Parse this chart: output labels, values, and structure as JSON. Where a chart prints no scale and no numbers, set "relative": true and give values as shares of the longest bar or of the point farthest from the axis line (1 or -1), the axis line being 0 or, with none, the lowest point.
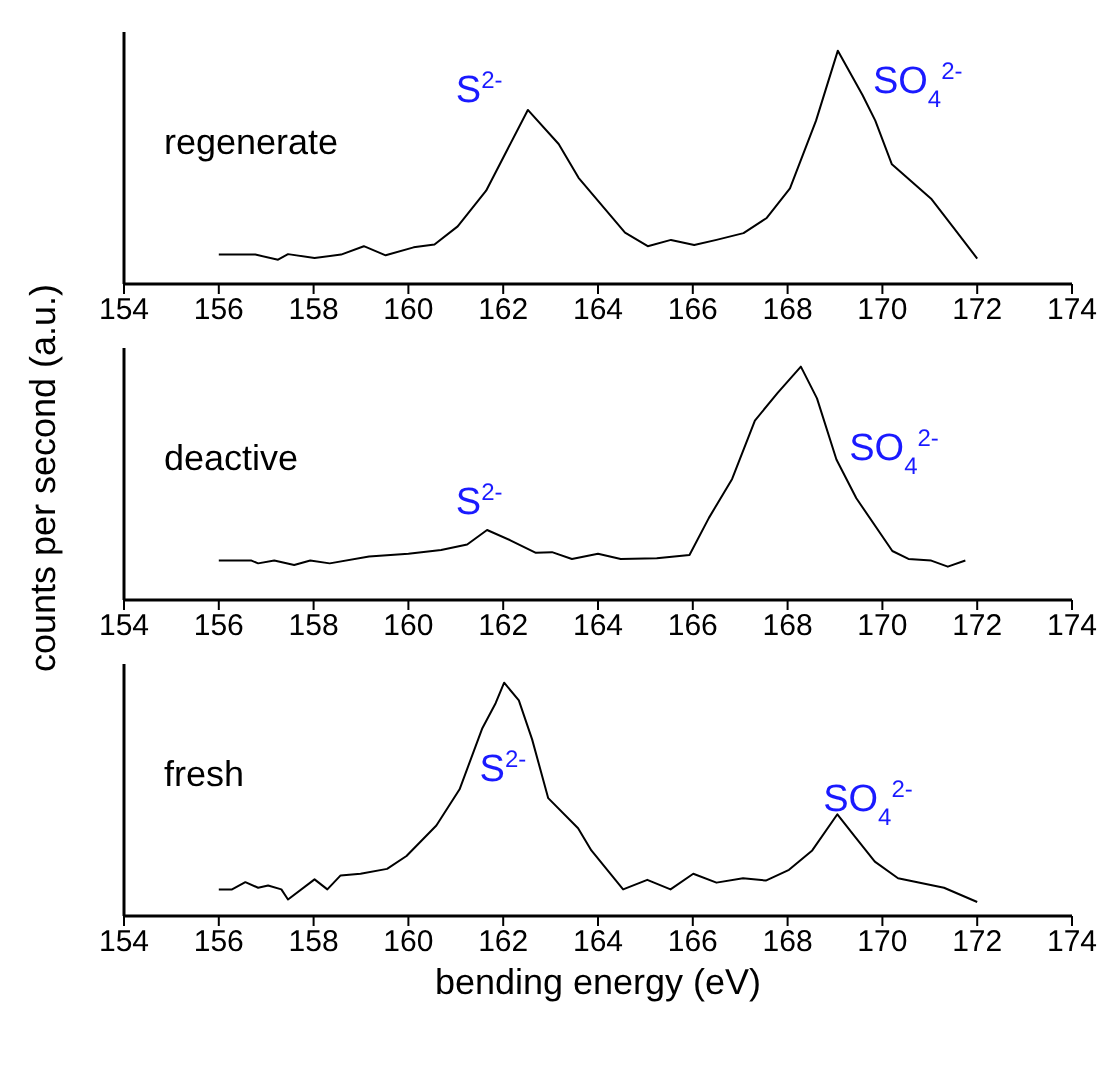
{
  "chart_data": [
    {
      "type": "line",
      "relative": true,
      "xlim": [
        154,
        174
      ],
      "xticks": [
        154,
        156,
        158,
        160,
        162,
        164,
        166,
        168,
        170,
        172,
        174
      ],
      "series": [
        {
          "name": "regenerate",
          "color": "#000000",
          "x": [
            156.0,
            156.77,
            157.25,
            157.46,
            158.02,
            158.58,
            159.06,
            159.52,
            160.11,
            160.55,
            161.04,
            161.64,
            162.52,
            163.17,
            163.59,
            164.57,
            165.05,
            165.54,
            166.03,
            166.5,
            167.07,
            167.56,
            168.05,
            168.6,
            169.06,
            169.58,
            169.85,
            170.2,
            171.04,
            171.5,
            172.0
          ],
          "values": [
            0.126,
            0.126,
            0.104,
            0.128,
            0.111,
            0.126,
            0.162,
            0.123,
            0.157,
            0.169,
            0.247,
            0.4,
            0.746,
            0.6,
            0.455,
            0.22,
            0.162,
            0.189,
            0.167,
            0.189,
            0.218,
            0.283,
            0.41,
            0.7,
            1,
            0.81,
            0.7,
            0.513,
            0.363,
            0.242,
            0.109
          ]
        }
      ],
      "annotations": [
        "S$^{2-}$",
        "SO$_{4}$$^{2-}$"
      ]
    },
    {
      "type": "line",
      "relative": true,
      "xlim": [
        154,
        174
      ],
      "xticks": [
        154,
        156,
        158,
        160,
        162,
        164,
        166,
        168,
        170,
        172,
        174
      ],
      "ylabel": "counts per second (a.u.)",
      "series": [
        {
          "name": "deactive",
          "color": "#000000",
          "x": [
            156,
            156.69,
            156.83,
            157.17,
            157.59,
            157.93,
            158.34,
            159.17,
            160,
            160.69,
            161.24,
            161.66,
            162.14,
            162.69,
            163.03,
            163.45,
            164,
            164.48,
            165.24,
            165.93,
            166.34,
            166.83,
            167.31,
            167.79,
            168.28,
            168.62,
            169.03,
            169.45,
            170.21,
            170.55,
            171.03,
            171.38,
            171.75
          ],
          "values": [
            0.169,
            0.169,
            0.157,
            0.169,
            0.15,
            0.169,
            0.157,
            0.186,
            0.198,
            0.214,
            0.238,
            0.3,
            0.257,
            0.202,
            0.205,
            0.176,
            0.198,
            0.176,
            0.179,
            0.193,
            0.352,
            0.519,
            0.769,
            0.888,
            1,
            0.864,
            0.602,
            0.436,
            0.21,
            0.176,
            0.169,
            0.143,
            0.169
          ]
        }
      ],
      "annotations": [
        "S$^{2-}$",
        "SO$_{4}$$^{2-}$"
      ]
    },
    {
      "type": "line",
      "relative": true,
      "xlim": [
        154,
        174
      ],
      "xticks": [
        154,
        156,
        158,
        160,
        162,
        164,
        166,
        168,
        170,
        172,
        174
      ],
      "xlabel": "bending energy (eV)",
      "series": [
        {
          "name": "fresh",
          "color": "#000000",
          "x": [
            156.0,
            156.28,
            156.56,
            156.83,
            157.04,
            157.32,
            157.46,
            158.02,
            158.29,
            158.57,
            158.99,
            159.55,
            159.96,
            160.59,
            161.08,
            161.56,
            161.84,
            162.02,
            162.33,
            162.61,
            162.95,
            163.58,
            163.86,
            164.53,
            165.04,
            165.53,
            166.01,
            166.5,
            167.06,
            167.54,
            168.03,
            168.52,
            169.05,
            169.42,
            169.84,
            170.33,
            171.3,
            172.0
          ],
          "values": [
            0.114,
            0.114,
            0.145,
            0.121,
            0.131,
            0.114,
            0.071,
            0.157,
            0.114,
            0.174,
            0.181,
            0.202,
            0.257,
            0.388,
            0.543,
            0.805,
            0.912,
            1,
            0.924,
            0.757,
            0.505,
            0.376,
            0.281,
            0.114,
            0.155,
            0.114,
            0.181,
            0.143,
            0.162,
            0.152,
            0.198,
            0.281,
            0.436,
            0.34,
            0.233,
            0.162,
            0.121,
            0.06
          ]
        }
      ],
      "annotations": [
        "S$^{2-}$",
        "SO$_{4}$$^{2-}$"
      ]
    }
  ]
}
